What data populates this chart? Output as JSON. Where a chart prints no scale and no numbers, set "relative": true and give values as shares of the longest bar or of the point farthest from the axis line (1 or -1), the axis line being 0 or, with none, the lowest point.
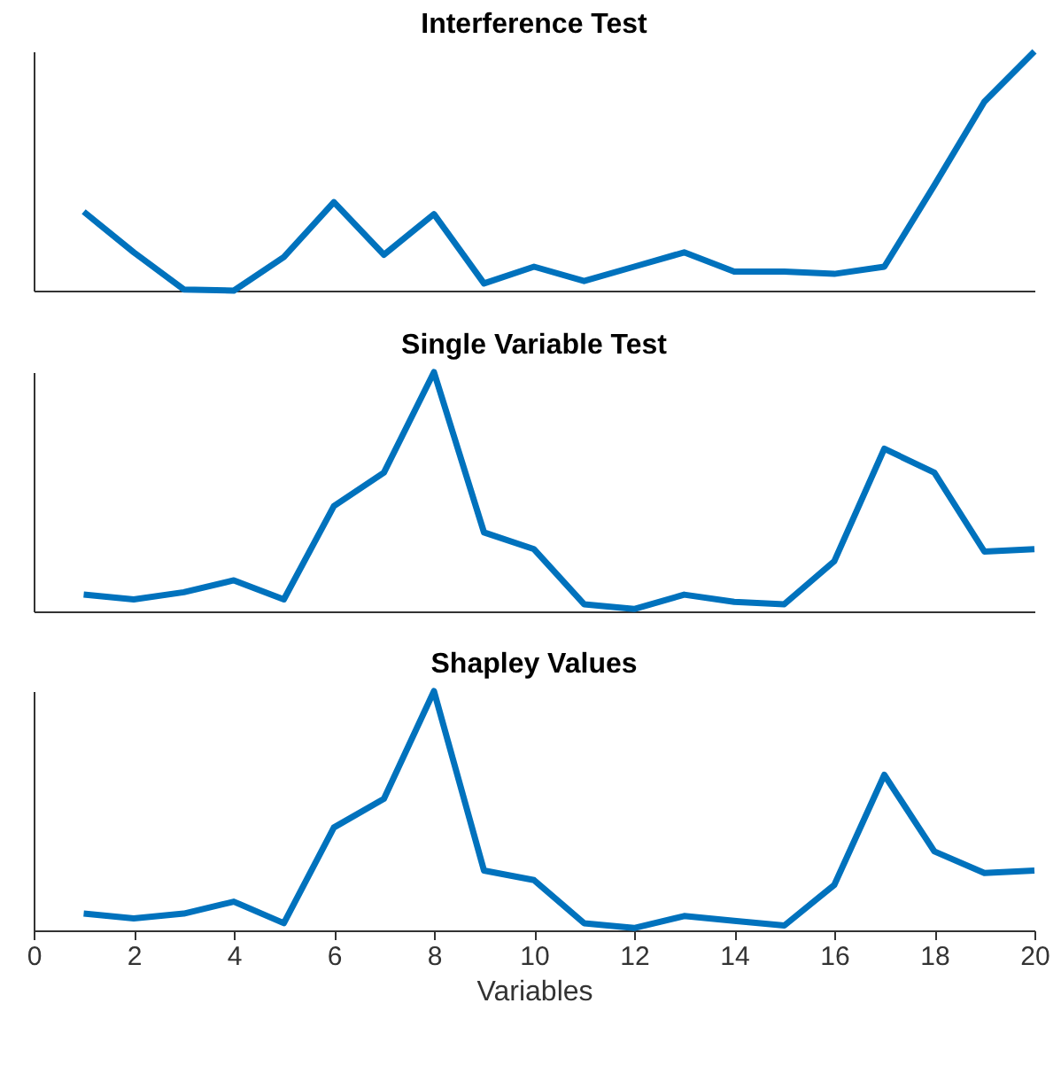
{
  "chart_data": [
    {
      "type": "line",
      "title": "Interference Test",
      "relative": true,
      "x": [
        1,
        2,
        3,
        4,
        5,
        6,
        7,
        8,
        9,
        10,
        11,
        12,
        13,
        14,
        15,
        16,
        17,
        18,
        19,
        20
      ],
      "xlim": [
        0,
        20
      ],
      "xticks": [
        0,
        2,
        4,
        6,
        8,
        10,
        12,
        14,
        16,
        18,
        20
      ],
      "tick_labels": false,
      "grid": false,
      "series": [
        {
          "color": "#0072bd",
          "values": [
            0.33,
            0.16,
            0.005,
            0,
            0.14,
            0.37,
            0.15,
            0.32,
            0.03,
            0.1,
            0.04,
            0.1,
            0.16,
            0.08,
            0.08,
            0.07,
            0.1,
            0.44,
            0.79,
            1
          ]
        }
      ]
    },
    {
      "type": "line",
      "title": "Single Variable Test",
      "relative": true,
      "x": [
        1,
        2,
        3,
        4,
        5,
        6,
        7,
        8,
        9,
        10,
        11,
        12,
        13,
        14,
        15,
        16,
        17,
        18,
        19,
        20
      ],
      "xlim": [
        0,
        20
      ],
      "xticks": [
        0,
        2,
        4,
        6,
        8,
        10,
        12,
        14,
        16,
        18,
        20
      ],
      "tick_labels": false,
      "grid": false,
      "series": [
        {
          "color": "#0072bd",
          "values": [
            0.07,
            0.05,
            0.08,
            0.13,
            0.05,
            0.44,
            0.58,
            1,
            0.33,
            0.26,
            0.03,
            0.01,
            0.07,
            0.04,
            0.03,
            0.21,
            0.68,
            0.58,
            0.25,
            0.26
          ]
        }
      ]
    },
    {
      "type": "line",
      "title": "Shapley Values",
      "xlabel": "Variables",
      "relative": true,
      "x": [
        1,
        2,
        3,
        4,
        5,
        6,
        7,
        8,
        9,
        10,
        11,
        12,
        13,
        14,
        15,
        16,
        17,
        18,
        19,
        20
      ],
      "xlim": [
        0,
        20
      ],
      "xticks": [
        0,
        2,
        4,
        6,
        8,
        10,
        12,
        14,
        16,
        18,
        20
      ],
      "tick_labels": "x",
      "grid": false,
      "series": [
        {
          "color": "#0072bd",
          "values": [
            0.07,
            0.05,
            0.07,
            0.12,
            0.03,
            0.43,
            0.55,
            1,
            0.25,
            0.21,
            0.03,
            0.01,
            0.06,
            0.04,
            0.02,
            0.19,
            0.65,
            0.33,
            0.24,
            0.25
          ]
        }
      ]
    }
  ]
}
